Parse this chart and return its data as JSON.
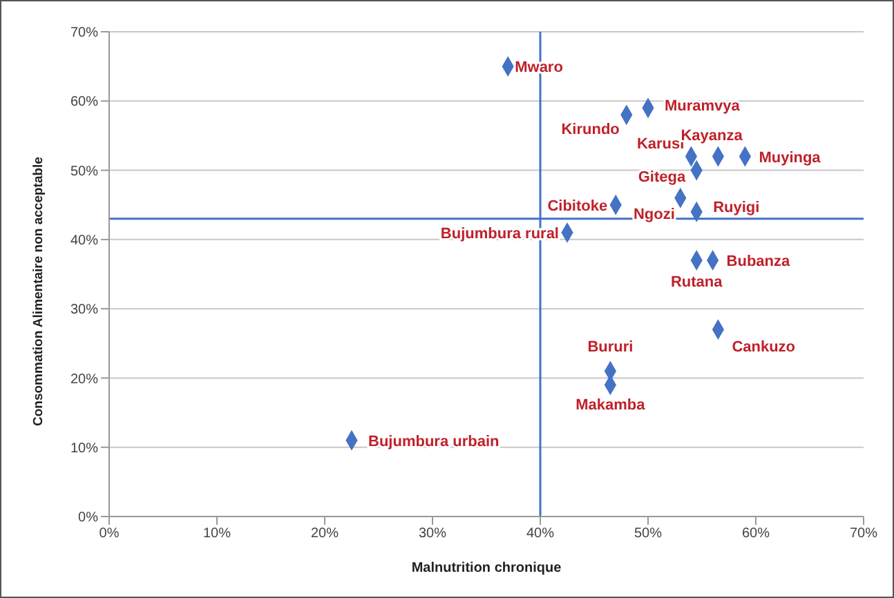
{
  "chart_data": {
    "type": "scatter",
    "xlabel": "Malnutrition chronique",
    "ylabel": "Consommation Alimentaire non acceptable",
    "x": [
      37,
      48,
      50,
      54,
      56.5,
      59,
      54.5,
      47,
      53,
      54.5,
      42.5,
      54.5,
      56,
      56.5,
      46.5,
      46.5,
      22.5
    ],
    "series": [
      {
        "color": "#4472c4",
        "values": [
          65,
          58,
          59,
          52,
          52,
          52,
          50,
          45,
          46,
          44,
          41,
          37,
          37,
          27,
          21,
          19,
          11
        ]
      }
    ],
    "annotations": [
      {
        "text": "Mwaro",
        "x": 37,
        "y": 65
      },
      {
        "text": "Kirundo",
        "x": 48,
        "y": 58
      },
      {
        "text": "Muramvya",
        "x": 50,
        "y": 59
      },
      {
        "text": "Karusi",
        "x": 54,
        "y": 52
      },
      {
        "text": "Kayanza",
        "x": 56.5,
        "y": 52
      },
      {
        "text": "Muyinga",
        "x": 59,
        "y": 52
      },
      {
        "text": "Gitega",
        "x": 54.5,
        "y": 50
      },
      {
        "text": "Cibitoke",
        "x": 47,
        "y": 45
      },
      {
        "text": "Ngozi",
        "x": 53,
        "y": 46
      },
      {
        "text": "Ruyigi",
        "x": 54.5,
        "y": 44
      },
      {
        "text": "Bujumbura rural",
        "x": 42.5,
        "y": 41
      },
      {
        "text": "Rutana",
        "x": 54.5,
        "y": 37
      },
      {
        "text": "Bubanza",
        "x": 56,
        "y": 37
      },
      {
        "text": "Cankuzo",
        "x": 56.5,
        "y": 27
      },
      {
        "text": "Bururi",
        "x": 46.5,
        "y": 21
      },
      {
        "text": "Makamba",
        "x": 46.5,
        "y": 19
      },
      {
        "text": "Bujumbura urbain",
        "x": 22.5,
        "y": 11
      }
    ],
    "xlim": [
      0,
      70
    ],
    "ylim": [
      0,
      70
    ],
    "xticks": [
      {
        "value": 0,
        "label": "0%"
      },
      {
        "value": 10,
        "label": "10%"
      },
      {
        "value": 20,
        "label": "20%"
      },
      {
        "value": 30,
        "label": "30%"
      },
      {
        "value": 40,
        "label": "40%"
      },
      {
        "value": 50,
        "label": "50%"
      },
      {
        "value": 60,
        "label": "60%"
      },
      {
        "value": 70,
        "label": "70%"
      }
    ],
    "yticks": [
      {
        "value": 0,
        "label": "0%"
      },
      {
        "value": 10,
        "label": "10%"
      },
      {
        "value": 20,
        "label": "20%"
      },
      {
        "value": 30,
        "label": "30%"
      },
      {
        "value": 40,
        "label": "40%"
      },
      {
        "value": 50,
        "label": "50%"
      },
      {
        "value": 60,
        "label": "60%"
      },
      {
        "value": 70,
        "label": "70%"
      }
    ],
    "ref_lines": [
      {
        "axis": "x",
        "value": 40,
        "color": "#4472c4"
      },
      {
        "axis": "y",
        "value": 43,
        "color": "#4472c4"
      }
    ],
    "grid": "y",
    "marker": "diamond",
    "legend": false
  }
}
